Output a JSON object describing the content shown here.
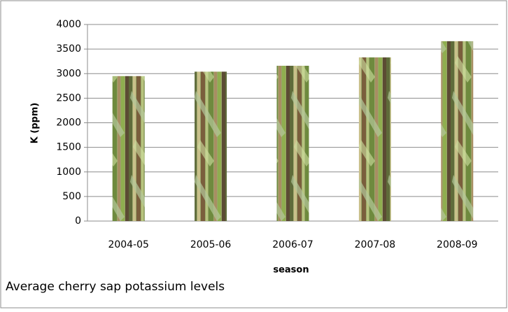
{
  "chart_data": {
    "type": "bar",
    "title": "Average cherry sap potassium levels",
    "x_label": "season",
    "y_label": "K (ppm)",
    "categories": [
      "2004-05",
      "2005-06",
      "2006-07",
      "2007-08",
      "2008-09"
    ],
    "values": [
      2950,
      3040,
      3160,
      3330,
      3660
    ],
    "ylim": [
      0,
      4000
    ],
    "yticks": [
      0,
      500,
      1000,
      1500,
      2000,
      2500,
      3000,
      3500,
      4000
    ],
    "grid": true
  }
}
